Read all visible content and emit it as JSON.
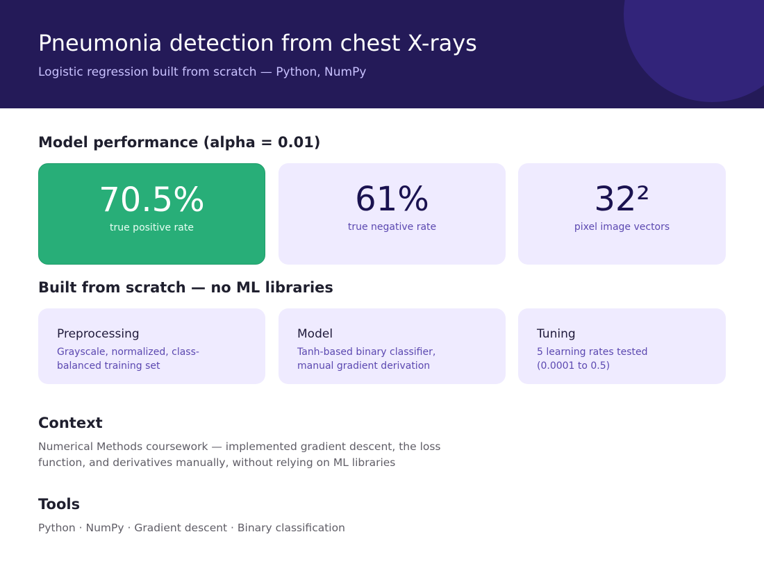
{
  "header": {
    "title": "Pneumonia detection from chest X-rays",
    "subtitle": "Logistic regression built from scratch — Python, NumPy"
  },
  "performance": {
    "title": "Model performance (alpha = 0.01)",
    "metrics": [
      {
        "value": "70.5%",
        "label": "true positive rate"
      },
      {
        "value": "61%",
        "label": "true negative rate"
      },
      {
        "value": "32²",
        "label": "pixel image vectors"
      }
    ]
  },
  "scratch": {
    "title": "Built from scratch — no ML libraries",
    "cards": [
      {
        "title": "Preprocessing",
        "desc": "Grayscale, normalized, class-balanced training set"
      },
      {
        "title": "Model",
        "desc": "Tanh-based binary classifier, manual gradient derivation"
      },
      {
        "title": "Tuning",
        "desc": "5 learning rates tested (0.0001 to 0.5)"
      }
    ]
  },
  "context": {
    "title": "Context",
    "text": "Numerical Methods coursework — implemented gradient descent, the loss function, and derivatives manually, without relying on ML libraries"
  },
  "tools": {
    "title": "Tools",
    "text": "Python · NumPy · Gradient descent · Binary classification"
  },
  "colors": {
    "header_bg": "#241a58",
    "accent_green": "#28ae78",
    "card_bg": "#efebff",
    "accent_purple": "#5b48b0"
  }
}
